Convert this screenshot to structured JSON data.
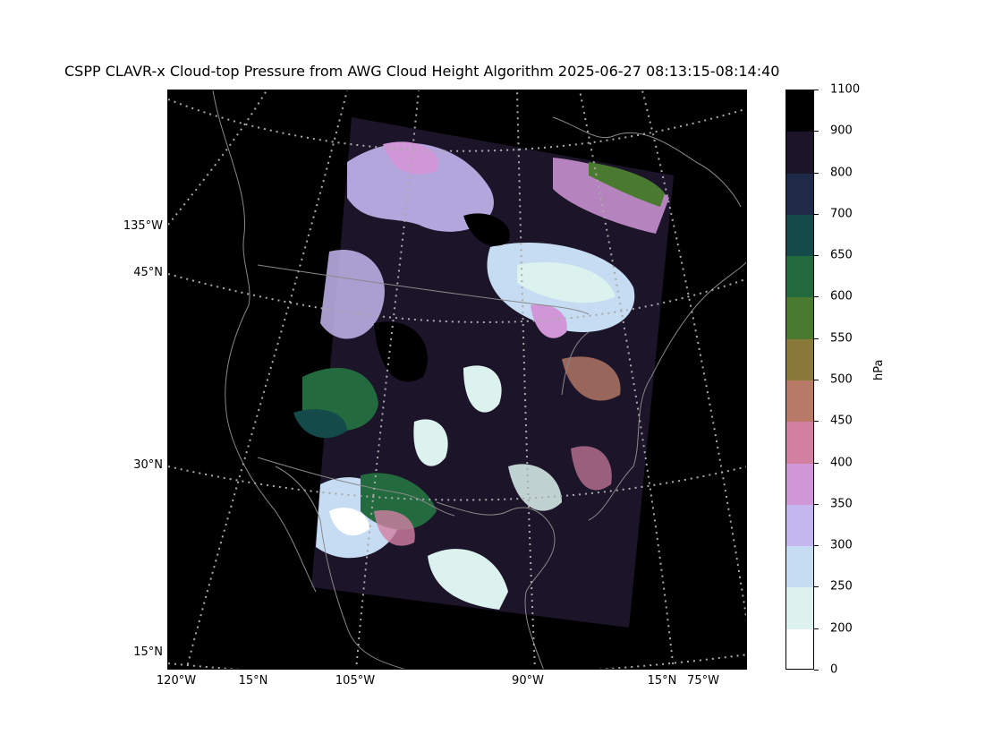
{
  "title": "CSPP CLAVR-x Cloud-top Pressure from AWG Cloud Height Algorithm 2025-06-27 08:13:15-08:14:40",
  "left_ticks": [
    "135°W",
    "45°N",
    "30°N",
    "15°N"
  ],
  "bottom_ticks": [
    "120°W",
    "15°N",
    "105°W",
    "90°W",
    "15°N",
    "75°W"
  ],
  "colorbar": {
    "unit": "hPa",
    "labels": [
      "1100",
      "900",
      "800",
      "700",
      "650",
      "600",
      "550",
      "500",
      "450",
      "400",
      "350",
      "300",
      "250",
      "200",
      "0"
    ],
    "colors": [
      "#000000",
      "#1c1428",
      "#1e2a48",
      "#154a4a",
      "#236b3e",
      "#4a7a30",
      "#8a7a3a",
      "#b87a66",
      "#d27fa2",
      "#d096d8",
      "#c4b6ef",
      "#c6dcf2",
      "#dcf2ee",
      "#ffffff"
    ]
  }
}
